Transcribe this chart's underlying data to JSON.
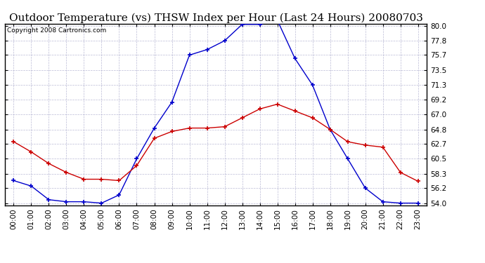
{
  "title": "Outdoor Temperature (vs) THSW Index per Hour (Last 24 Hours) 20080703",
  "copyright": "Copyright 2008 Cartronics.com",
  "hours": [
    "00:00",
    "01:00",
    "02:00",
    "03:00",
    "04:00",
    "05:00",
    "06:00",
    "07:00",
    "08:00",
    "09:00",
    "10:00",
    "11:00",
    "12:00",
    "13:00",
    "14:00",
    "15:00",
    "16:00",
    "17:00",
    "18:00",
    "19:00",
    "20:00",
    "21:00",
    "22:00",
    "23:00"
  ],
  "temp": [
    63.0,
    61.5,
    59.8,
    58.5,
    57.5,
    57.5,
    57.3,
    59.5,
    63.5,
    64.5,
    65.0,
    65.0,
    65.2,
    66.5,
    67.8,
    68.5,
    67.5,
    66.5,
    64.8,
    63.0,
    62.5,
    62.2,
    58.5,
    57.2
  ],
  "thsw": [
    57.3,
    56.5,
    54.5,
    54.2,
    54.2,
    54.0,
    55.2,
    60.5,
    65.0,
    68.8,
    75.7,
    76.5,
    77.8,
    80.2,
    80.2,
    80.8,
    75.2,
    71.3,
    64.8,
    60.5,
    56.2,
    54.2,
    54.0,
    54.0
  ],
  "ylim_min": 54.0,
  "ylim_max": 80.0,
  "yticks": [
    54.0,
    56.2,
    58.3,
    60.5,
    62.7,
    64.8,
    67.0,
    69.2,
    71.3,
    73.5,
    75.7,
    77.8,
    80.0
  ],
  "temp_color": "#cc0000",
  "thsw_color": "#0000cc",
  "bg_color": "#ffffff",
  "grid_color": "#aaaacc",
  "title_fontsize": 11,
  "tick_fontsize": 7.5,
  "copyright_fontsize": 6.5
}
